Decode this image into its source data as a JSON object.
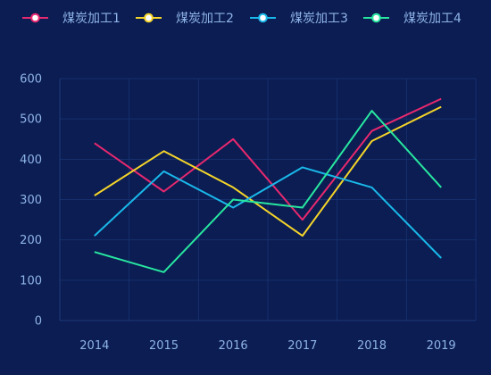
{
  "chart_data": {
    "type": "line",
    "x": [
      "2014",
      "2015",
      "2016",
      "2017",
      "2018",
      "2019"
    ],
    "yticks": [
      "0",
      "100",
      "200",
      "300",
      "400",
      "500",
      "600"
    ],
    "ylim": [
      0,
      600
    ],
    "grid": true,
    "legend_position": "top",
    "series": [
      {
        "name": "煤炭加工1",
        "color": "#e8286f",
        "values": [
          440,
          320,
          450,
          250,
          470,
          550
        ]
      },
      {
        "name": "煤炭加工2",
        "color": "#f5d52a",
        "values": [
          310,
          420,
          330,
          210,
          445,
          530
        ]
      },
      {
        "name": "煤炭加工3",
        "color": "#1ab8ea",
        "values": [
          210,
          370,
          280,
          380,
          330,
          155
        ]
      },
      {
        "name": "煤炭加工4",
        "color": "#28e6a0",
        "values": [
          170,
          120,
          300,
          280,
          520,
          330
        ]
      }
    ]
  },
  "colors": {
    "background": "#0b1d52",
    "grid": "#17306e",
    "axis": "#1e3a7a",
    "text": "#8fb4e8"
  }
}
